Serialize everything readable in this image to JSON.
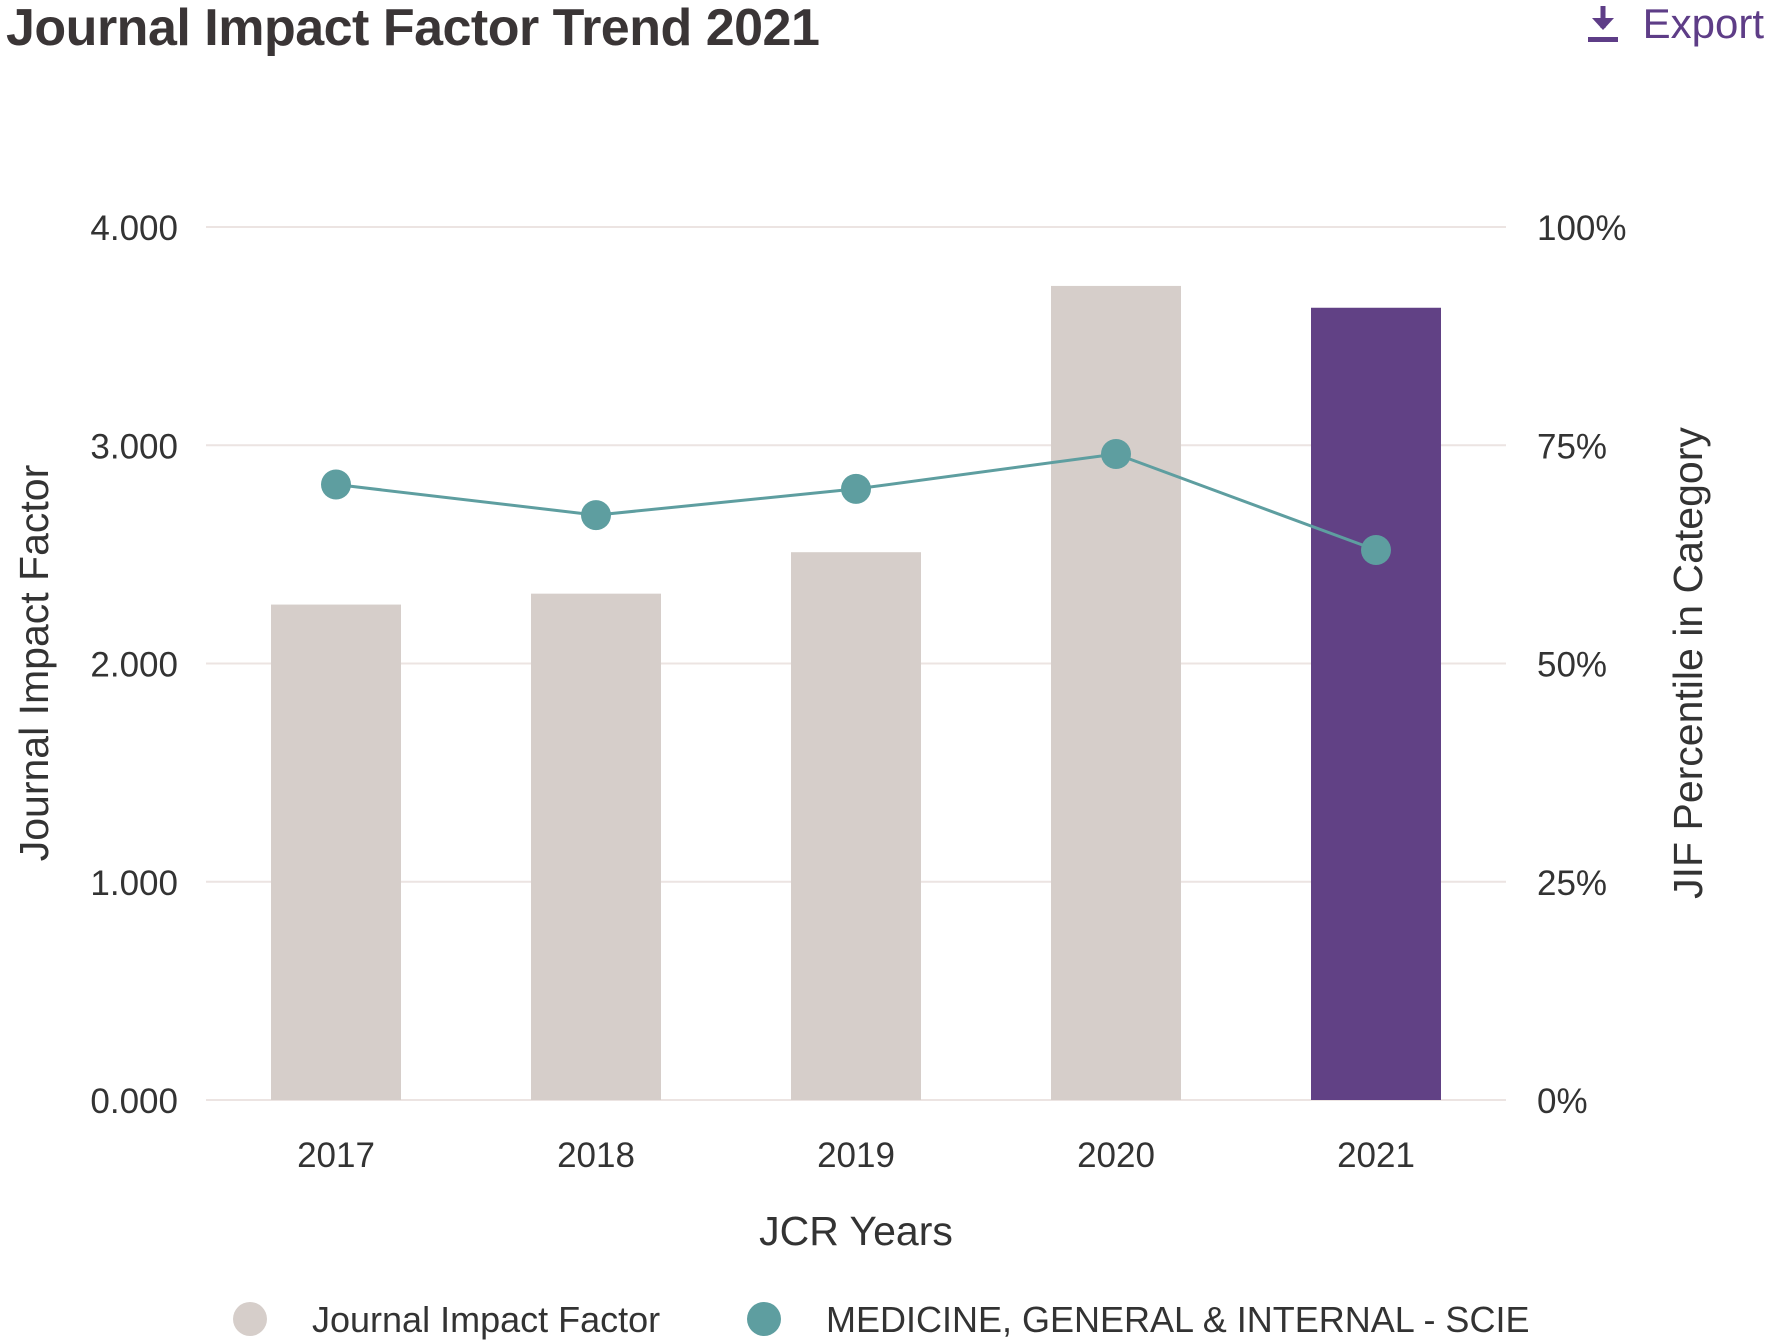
{
  "header": {
    "title": "Journal Impact Factor Trend 2021",
    "export_label": "Export",
    "export_icon": "download-icon"
  },
  "chart_data": {
    "type": "bar",
    "categories": [
      "2017",
      "2018",
      "2019",
      "2020",
      "2021"
    ],
    "series": [
      {
        "name": "Journal Impact Factor",
        "type": "bar",
        "axis": "left",
        "values": [
          2.27,
          2.32,
          2.51,
          3.73,
          3.63
        ],
        "color": "#d6ceca",
        "highlight_color": "#614185",
        "highlight_category": "2021"
      },
      {
        "name": "MEDICINE, GENERAL & INTERNAL - SCIE",
        "type": "line",
        "axis": "right",
        "values": [
          70.5,
          67,
          70,
          74,
          63
        ],
        "color": "#5e9ea0"
      }
    ],
    "xlabel": "JCR Years",
    "ylabel": "Journal Impact Factor",
    "y2label": "JIF Percentile in Category",
    "ylim": [
      0,
      4
    ],
    "y2lim": [
      0,
      100
    ],
    "yticks": [
      "0.000",
      "1.000",
      "2.000",
      "3.000",
      "4.000"
    ],
    "y2ticks": [
      "0%",
      "25%",
      "50%",
      "75%",
      "100%"
    ],
    "grid": true,
    "legend_position": "bottom"
  }
}
